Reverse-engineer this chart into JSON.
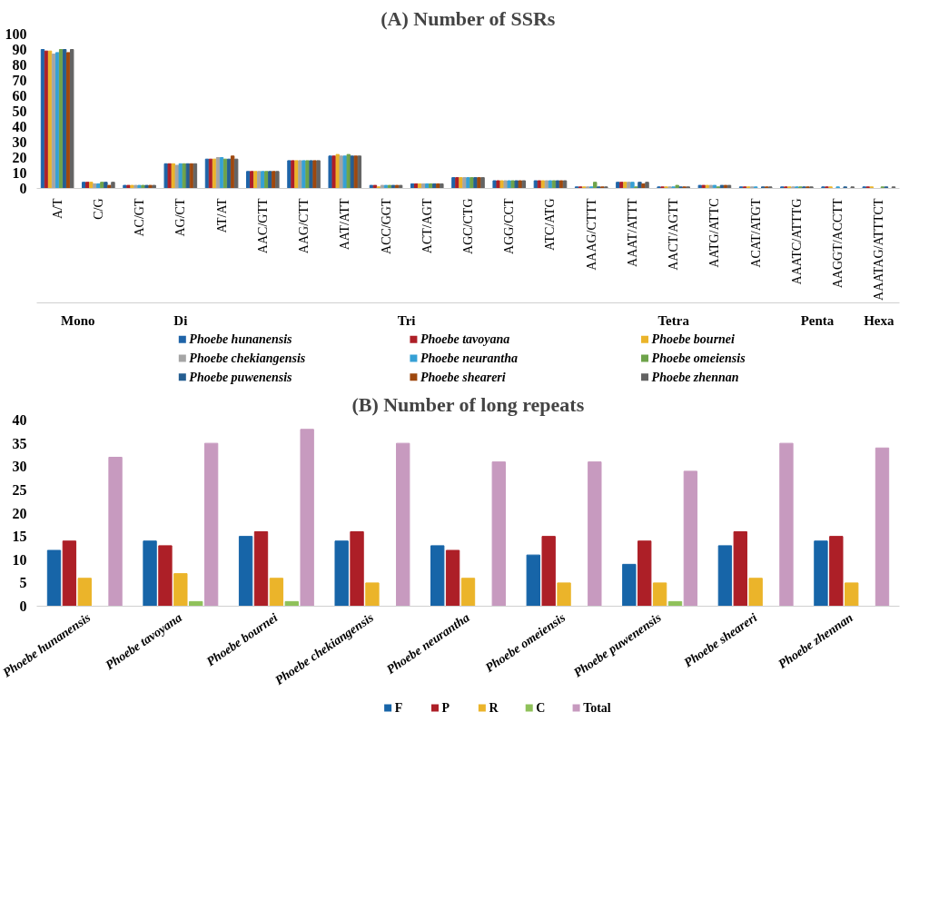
{
  "chart_data": [
    {
      "type": "bar",
      "title": "(A) Number of SSRs",
      "categories": [
        "A/T",
        "C/G",
        "AC/GT",
        "AG/CT",
        "AT/AT",
        "AAC/GTT",
        "AAG/CTT",
        "AAT/ATT",
        "ACC/GGT",
        "ACT/AGT",
        "AGC/CTG",
        "AGG/CCT",
        "ATC/ATG",
        "AAAG/CTTT",
        "AAAT/ATTT",
        "AACT/AGTT",
        "AATG/ATTC",
        "ACAT/ATGT",
        "AAATC/ATTTG",
        "AAGGT/ACCTT",
        "AAATAG/ATTTCT"
      ],
      "series": [
        {
          "name": "Phoebe hunanensis",
          "color": "#1f64a8",
          "values": [
            90,
            4,
            2,
            16,
            19,
            11,
            18,
            21,
            2,
            3,
            7,
            5,
            5,
            1,
            4,
            1,
            2,
            1,
            1,
            1,
            1
          ]
        },
        {
          "name": "Phoebe tavoyana",
          "color": "#ad1f27",
          "values": [
            89,
            4,
            2,
            16,
            19,
            11,
            18,
            21,
            2,
            3,
            7,
            5,
            5,
            1,
            4,
            1,
            2,
            1,
            1,
            1,
            1
          ]
        },
        {
          "name": "Phoebe bournei",
          "color": "#ebb42a",
          "values": [
            89,
            4,
            2,
            16,
            19,
            11,
            18,
            22,
            1,
            3,
            7,
            5,
            5,
            1,
            4,
            1,
            2,
            1,
            1,
            1,
            1
          ]
        },
        {
          "name": "Phoebe chekiangensis",
          "color": "#a5a5a5",
          "values": [
            87,
            3,
            2,
            15,
            20,
            11,
            18,
            21,
            2,
            3,
            7,
            5,
            5,
            1,
            4,
            1,
            2,
            1,
            1,
            0,
            0
          ]
        },
        {
          "name": "Phoebe neurantha",
          "color": "#36a0d5",
          "values": [
            88,
            3,
            2,
            16,
            20,
            11,
            18,
            21,
            2,
            3,
            7,
            5,
            5,
            1,
            4,
            1,
            2,
            1,
            1,
            1,
            0
          ]
        },
        {
          "name": "Phoebe omeiensis",
          "color": "#6ea34a",
          "values": [
            90,
            4,
            2,
            16,
            19,
            11,
            18,
            22,
            2,
            3,
            7,
            5,
            5,
            4,
            1,
            2,
            1,
            0,
            1,
            0,
            1
          ]
        },
        {
          "name": "Phoebe puwenensis",
          "color": "#255e91",
          "values": [
            90,
            4,
            2,
            16,
            19,
            11,
            18,
            21,
            2,
            3,
            7,
            5,
            5,
            1,
            4,
            1,
            2,
            1,
            1,
            1,
            1
          ]
        },
        {
          "name": "Phoebe sheareri",
          "color": "#9e480e",
          "values": [
            88,
            2,
            2,
            16,
            21,
            11,
            18,
            21,
            2,
            3,
            7,
            5,
            5,
            1,
            3,
            1,
            2,
            1,
            1,
            0,
            0
          ]
        },
        {
          "name": "Phoebe zhennan",
          "color": "#636363",
          "values": [
            90,
            4,
            2,
            16,
            19,
            11,
            18,
            21,
            2,
            3,
            7,
            5,
            5,
            1,
            4,
            1,
            2,
            1,
            1,
            1,
            1
          ]
        }
      ],
      "annotations": [
        "Mono",
        "Di",
        "Tri",
        "Tetra",
        "Penta",
        "Hexa"
      ],
      "ylim": [
        0,
        100
      ],
      "yticks": [
        0,
        10,
        20,
        30,
        40,
        50,
        60,
        70,
        80,
        90,
        100
      ],
      "grid": false,
      "legend": "bottom"
    },
    {
      "type": "bar",
      "title": "(B) Number of long repeats",
      "categories": [
        "Phoebe hunanensis",
        "Phoebe tavoyana",
        "Phoebe bournei",
        "Phoebe chekiangensis",
        "Phoebe neurantha",
        "Phoebe omeiensis",
        "Phoebe puwenensis",
        "Phoebe sheareri",
        "Phoebe zhennan"
      ],
      "series": [
        {
          "name": "F",
          "color": "#1765a8",
          "values": [
            12,
            14,
            15,
            14,
            13,
            11,
            9,
            13,
            14
          ]
        },
        {
          "name": "P",
          "color": "#ad1f27",
          "values": [
            14,
            13,
            16,
            16,
            12,
            15,
            14,
            16,
            15
          ]
        },
        {
          "name": "R",
          "color": "#ebb42a",
          "values": [
            6,
            7,
            6,
            5,
            6,
            5,
            5,
            6,
            5
          ]
        },
        {
          "name": "C",
          "color": "#8fc15a",
          "values": [
            0,
            1,
            1,
            0,
            0,
            0,
            1,
            0,
            0
          ]
        },
        {
          "name": "Total",
          "color": "#c79abf",
          "values": [
            32,
            35,
            38,
            35,
            31,
            31,
            29,
            35,
            34
          ]
        }
      ],
      "ylim": [
        0,
        40
      ],
      "yticks": [
        0,
        5,
        10,
        15,
        20,
        25,
        30,
        35,
        40
      ],
      "grid": false,
      "legend": "bottom"
    }
  ]
}
